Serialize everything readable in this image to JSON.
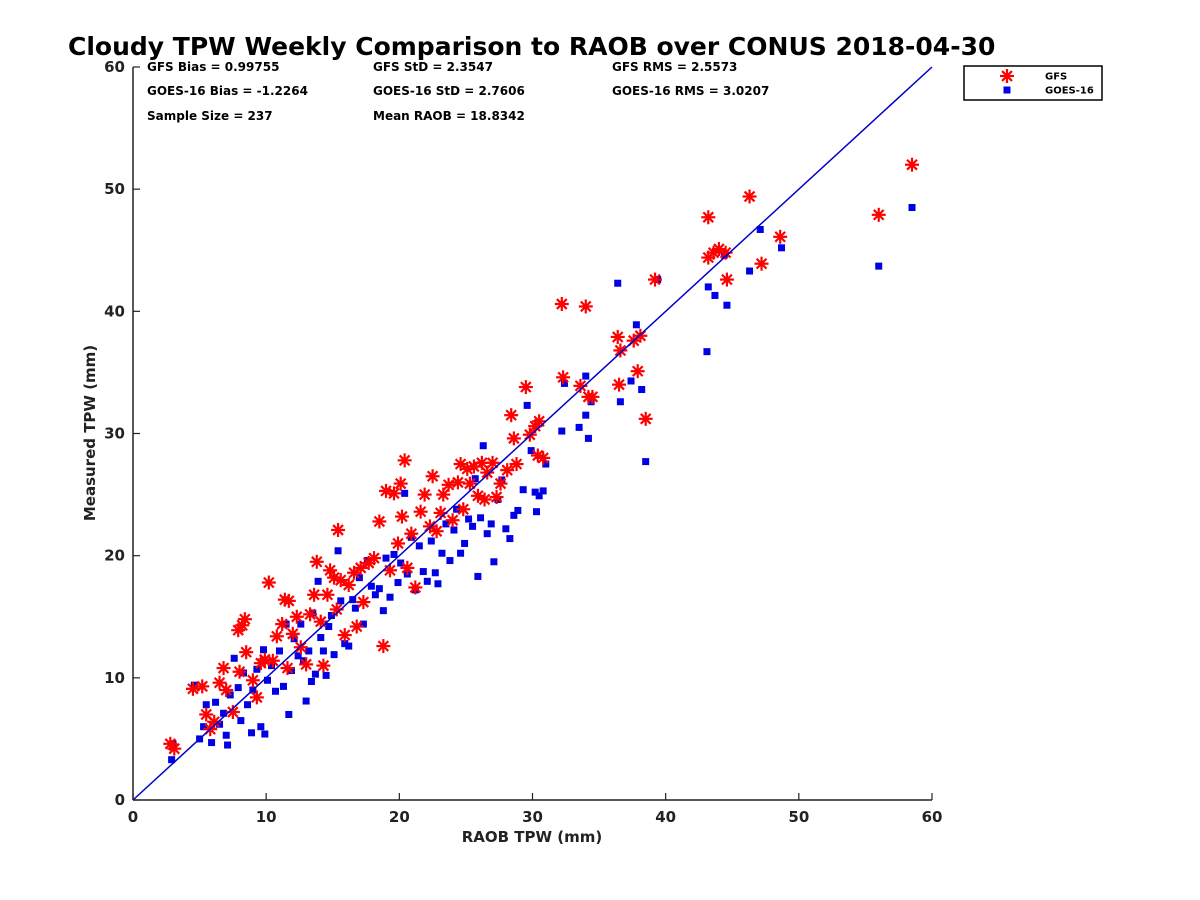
{
  "chart_data": {
    "type": "scatter",
    "title": "Cloudy TPW Weekly Comparison to RAOB over CONUS 2018-04-30",
    "xlabel": "RAOB TPW (mm)",
    "ylabel": "Measured TPW (mm)",
    "xlim": [
      0,
      60
    ],
    "ylim": [
      0,
      60
    ],
    "xticks": [
      "0",
      "10",
      "20",
      "30",
      "40",
      "50",
      "60"
    ],
    "yticks": [
      "0",
      "10",
      "20",
      "30",
      "40",
      "50",
      "60"
    ],
    "grid": false,
    "legend_position": "outside-top-right",
    "reference_line": {
      "x": [
        0,
        60
      ],
      "y": [
        0,
        60
      ],
      "color": "#0000cc"
    },
    "stats": [
      [
        "GFS Bias = 0.99755",
        "GFS StD = 2.3547",
        "GFS RMS = 2.5573"
      ],
      [
        "GOES-16 Bias = -1.2264",
        "GOES-16 StD = 2.7606",
        "GOES-16 RMS = 3.0207"
      ],
      [
        "Sample Size = 237",
        "Mean RAOB = 18.8342",
        ""
      ]
    ],
    "series": [
      {
        "name": "GFS",
        "marker": "asterisk",
        "color": "#ff0000",
        "points": [
          [
            2.8,
            4.6
          ],
          [
            3.1,
            4.2
          ],
          [
            4.5,
            9.1
          ],
          [
            5.2,
            9.3
          ],
          [
            5.5,
            7.0
          ],
          [
            5.8,
            5.8
          ],
          [
            6.1,
            6.4
          ],
          [
            6.5,
            9.6
          ],
          [
            6.8,
            10.8
          ],
          [
            7.0,
            9.0
          ],
          [
            7.5,
            7.2
          ],
          [
            7.9,
            13.9
          ],
          [
            8.2,
            14.3
          ],
          [
            8.4,
            14.8
          ],
          [
            8.0,
            10.5
          ],
          [
            8.5,
            12.1
          ],
          [
            9.0,
            9.8
          ],
          [
            9.3,
            8.4
          ],
          [
            9.6,
            11.2
          ],
          [
            9.9,
            11.5
          ],
          [
            10.2,
            17.8
          ],
          [
            10.5,
            11.4
          ],
          [
            10.8,
            13.4
          ],
          [
            11.2,
            14.4
          ],
          [
            11.4,
            16.4
          ],
          [
            11.7,
            16.3
          ],
          [
            11.6,
            10.8
          ],
          [
            12.0,
            13.6
          ],
          [
            12.3,
            15.0
          ],
          [
            12.6,
            12.5
          ],
          [
            13.0,
            11.1
          ],
          [
            13.3,
            15.2
          ],
          [
            13.6,
            16.8
          ],
          [
            13.8,
            19.5
          ],
          [
            14.1,
            14.6
          ],
          [
            14.3,
            11.0
          ],
          [
            14.6,
            16.8
          ],
          [
            14.8,
            18.8
          ],
          [
            15.1,
            18.2
          ],
          [
            15.3,
            15.6
          ],
          [
            15.4,
            22.1
          ],
          [
            15.6,
            18.0
          ],
          [
            15.9,
            13.5
          ],
          [
            16.2,
            17.6
          ],
          [
            16.6,
            18.6
          ],
          [
            16.8,
            14.2
          ],
          [
            17.1,
            19.0
          ],
          [
            17.3,
            16.2
          ],
          [
            17.7,
            19.4
          ],
          [
            18.1,
            19.8
          ],
          [
            18.5,
            22.8
          ],
          [
            18.8,
            12.6
          ],
          [
            19.0,
            25.3
          ],
          [
            19.3,
            18.8
          ],
          [
            19.6,
            25.1
          ],
          [
            19.9,
            21.0
          ],
          [
            20.1,
            25.9
          ],
          [
            20.4,
            27.8
          ],
          [
            20.2,
            23.2
          ],
          [
            20.6,
            19.0
          ],
          [
            20.9,
            21.8
          ],
          [
            21.2,
            17.4
          ],
          [
            21.6,
            23.6
          ],
          [
            21.9,
            25.0
          ],
          [
            22.3,
            22.4
          ],
          [
            22.5,
            26.5
          ],
          [
            22.8,
            22.0
          ],
          [
            23.1,
            23.5
          ],
          [
            23.3,
            25.0
          ],
          [
            23.7,
            25.8
          ],
          [
            24.0,
            22.9
          ],
          [
            24.4,
            26.0
          ],
          [
            24.6,
            27.5
          ],
          [
            24.8,
            23.8
          ],
          [
            25.1,
            27.1
          ],
          [
            25.3,
            25.9
          ],
          [
            25.6,
            27.3
          ],
          [
            25.9,
            24.9
          ],
          [
            26.2,
            27.6
          ],
          [
            26.4,
            24.6
          ],
          [
            26.6,
            26.8
          ],
          [
            27.0,
            27.6
          ],
          [
            27.3,
            24.8
          ],
          [
            27.6,
            25.9
          ],
          [
            28.1,
            27.0
          ],
          [
            28.4,
            31.5
          ],
          [
            28.6,
            29.6
          ],
          [
            28.8,
            27.5
          ],
          [
            29.5,
            33.8
          ],
          [
            29.8,
            29.9
          ],
          [
            30.2,
            30.6
          ],
          [
            30.5,
            31.0
          ],
          [
            30.4,
            28.2
          ],
          [
            30.8,
            28.0
          ],
          [
            32.2,
            40.6
          ],
          [
            32.3,
            34.6
          ],
          [
            33.6,
            33.9
          ],
          [
            34.0,
            40.4
          ],
          [
            34.2,
            33.0
          ],
          [
            34.5,
            33.0
          ],
          [
            36.4,
            37.9
          ],
          [
            36.5,
            34.0
          ],
          [
            36.6,
            36.8
          ],
          [
            37.6,
            37.6
          ],
          [
            37.9,
            35.1
          ],
          [
            38.1,
            38.0
          ],
          [
            38.5,
            31.2
          ],
          [
            39.2,
            42.6
          ],
          [
            43.2,
            47.7
          ],
          [
            43.2,
            44.4
          ],
          [
            43.6,
            44.8
          ],
          [
            44.0,
            45.1
          ],
          [
            44.5,
            44.8
          ],
          [
            44.6,
            42.6
          ],
          [
            46.3,
            49.4
          ],
          [
            47.2,
            43.9
          ],
          [
            48.6,
            46.1
          ],
          [
            56.0,
            47.9
          ],
          [
            58.5,
            52.0
          ]
        ]
      },
      {
        "name": "GOES-16",
        "marker": "square",
        "color": "#0000e6",
        "points": [
          [
            2.9,
            3.3
          ],
          [
            3.0,
            4.6
          ],
          [
            4.6,
            9.4
          ],
          [
            5.0,
            5.0
          ],
          [
            5.3,
            6.0
          ],
          [
            5.5,
            7.8
          ],
          [
            5.9,
            4.7
          ],
          [
            6.2,
            8.0
          ],
          [
            6.5,
            6.2
          ],
          [
            6.8,
            7.1
          ],
          [
            7.0,
            5.3
          ],
          [
            7.1,
            4.5
          ],
          [
            7.3,
            8.6
          ],
          [
            7.6,
            11.6
          ],
          [
            7.9,
            9.2
          ],
          [
            8.1,
            6.5
          ],
          [
            8.3,
            10.4
          ],
          [
            8.6,
            7.8
          ],
          [
            8.9,
            5.5
          ],
          [
            9.0,
            9.0
          ],
          [
            9.3,
            10.7
          ],
          [
            9.6,
            6.0
          ],
          [
            9.8,
            12.3
          ],
          [
            9.9,
            5.4
          ],
          [
            10.1,
            9.8
          ],
          [
            10.4,
            11.0
          ],
          [
            10.7,
            8.9
          ],
          [
            11.0,
            12.2
          ],
          [
            11.3,
            9.3
          ],
          [
            11.5,
            14.4
          ],
          [
            11.7,
            7.0
          ],
          [
            11.9,
            10.6
          ],
          [
            12.1,
            13.2
          ],
          [
            12.4,
            11.8
          ],
          [
            12.6,
            14.4
          ],
          [
            12.8,
            11.4
          ],
          [
            13.0,
            8.1
          ],
          [
            13.2,
            12.2
          ],
          [
            13.4,
            9.7
          ],
          [
            13.5,
            15.3
          ],
          [
            13.7,
            10.3
          ],
          [
            13.9,
            17.9
          ],
          [
            14.1,
            13.3
          ],
          [
            14.3,
            12.2
          ],
          [
            14.5,
            10.2
          ],
          [
            14.7,
            14.2
          ],
          [
            14.9,
            15.1
          ],
          [
            15.1,
            11.9
          ],
          [
            15.4,
            20.4
          ],
          [
            15.6,
            16.3
          ],
          [
            15.9,
            12.8
          ],
          [
            16.2,
            12.6
          ],
          [
            16.5,
            16.4
          ],
          [
            16.7,
            15.7
          ],
          [
            17.0,
            18.2
          ],
          [
            17.3,
            14.4
          ],
          [
            17.6,
            19.6
          ],
          [
            17.9,
            17.5
          ],
          [
            18.2,
            16.8
          ],
          [
            18.5,
            17.3
          ],
          [
            18.8,
            15.5
          ],
          [
            19.0,
            19.8
          ],
          [
            19.3,
            16.6
          ],
          [
            19.6,
            20.1
          ],
          [
            19.9,
            17.8
          ],
          [
            20.1,
            19.4
          ],
          [
            20.4,
            25.1
          ],
          [
            20.6,
            18.5
          ],
          [
            20.9,
            21.5
          ],
          [
            21.2,
            17.2
          ],
          [
            21.5,
            20.8
          ],
          [
            21.8,
            18.7
          ],
          [
            22.1,
            17.9
          ],
          [
            22.4,
            21.2
          ],
          [
            22.7,
            18.6
          ],
          [
            22.9,
            17.7
          ],
          [
            23.2,
            20.2
          ],
          [
            23.5,
            22.6
          ],
          [
            23.8,
            19.6
          ],
          [
            24.1,
            22.1
          ],
          [
            24.3,
            23.8
          ],
          [
            24.6,
            20.2
          ],
          [
            24.9,
            21.0
          ],
          [
            25.2,
            23.0
          ],
          [
            25.5,
            22.4
          ],
          [
            25.7,
            26.3
          ],
          [
            25.9,
            18.3
          ],
          [
            26.1,
            23.1
          ],
          [
            26.3,
            29.0
          ],
          [
            26.6,
            21.8
          ],
          [
            26.9,
            22.6
          ],
          [
            27.1,
            19.5
          ],
          [
            27.4,
            24.6
          ],
          [
            27.7,
            26.2
          ],
          [
            28.0,
            22.2
          ],
          [
            28.3,
            21.4
          ],
          [
            28.6,
            23.3
          ],
          [
            28.9,
            23.7
          ],
          [
            29.3,
            25.4
          ],
          [
            29.6,
            32.3
          ],
          [
            29.9,
            28.6
          ],
          [
            30.2,
            25.2
          ],
          [
            30.3,
            23.6
          ],
          [
            30.5,
            24.9
          ],
          [
            30.8,
            25.3
          ],
          [
            31.0,
            27.5
          ],
          [
            32.2,
            30.2
          ],
          [
            32.4,
            34.1
          ],
          [
            33.5,
            30.5
          ],
          [
            34.0,
            31.5
          ],
          [
            34.0,
            34.7
          ],
          [
            34.2,
            29.6
          ],
          [
            34.4,
            32.6
          ],
          [
            36.4,
            42.3
          ],
          [
            36.6,
            32.6
          ],
          [
            37.4,
            34.3
          ],
          [
            37.8,
            38.9
          ],
          [
            38.2,
            33.6
          ],
          [
            38.5,
            27.7
          ],
          [
            39.4,
            42.6
          ],
          [
            43.1,
            36.7
          ],
          [
            43.2,
            42.0
          ],
          [
            43.7,
            41.3
          ],
          [
            44.4,
            44.6
          ],
          [
            44.6,
            40.5
          ],
          [
            46.3,
            43.3
          ],
          [
            47.1,
            46.7
          ],
          [
            48.7,
            45.2
          ],
          [
            56.0,
            43.7
          ],
          [
            58.5,
            48.5
          ]
        ]
      }
    ]
  }
}
